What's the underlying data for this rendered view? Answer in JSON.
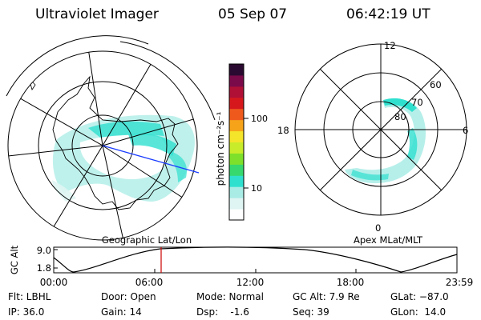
{
  "header": {
    "title": "Ultraviolet Imager",
    "date": "05 Sep 07",
    "time": "06:42:19 UT"
  },
  "left_panel": {
    "label": "Geographic Lat/Lon"
  },
  "right_panel": {
    "label": "Apex MLat/MLT",
    "mlt_labels": {
      "top": "12",
      "left": "18",
      "right": "6",
      "bottom": "0"
    },
    "mlat_labels": [
      "60",
      "70",
      "80"
    ]
  },
  "colorbar": {
    "unit_label": "photon cm⁻²s⁻¹",
    "tick_labels": [
      "100",
      "10"
    ],
    "colors": [
      "#ffffff",
      "#dff5f3",
      "#a9ece6",
      "#2fe0cf",
      "#37d86e",
      "#7ee02a",
      "#c8ec2a",
      "#f4e42a",
      "#f6a31a",
      "#ef5a1c",
      "#d6181c",
      "#b01036",
      "#7a0a4a",
      "#2a0a30"
    ]
  },
  "altitude_plot": {
    "ylabel": "GC Alt",
    "yticks": [
      "9.0",
      "1.8"
    ],
    "xticks": [
      "00:00",
      "06:00",
      "12:00",
      "18:00",
      "23:59"
    ],
    "marker_color": "#cc0000"
  },
  "footer": {
    "col1": [
      "Flt: LBHL",
      "IP: 36.0"
    ],
    "col2": [
      "Door: Open",
      "Gain: 14"
    ],
    "col3": [
      "Mode: Normal",
      "Dsp:    -1.6"
    ],
    "col4": [
      "GC Alt: 7.9 Re",
      "Seq: 39"
    ],
    "col5": [
      "GLat: −87.0",
      "GLon:  14.0"
    ]
  }
}
